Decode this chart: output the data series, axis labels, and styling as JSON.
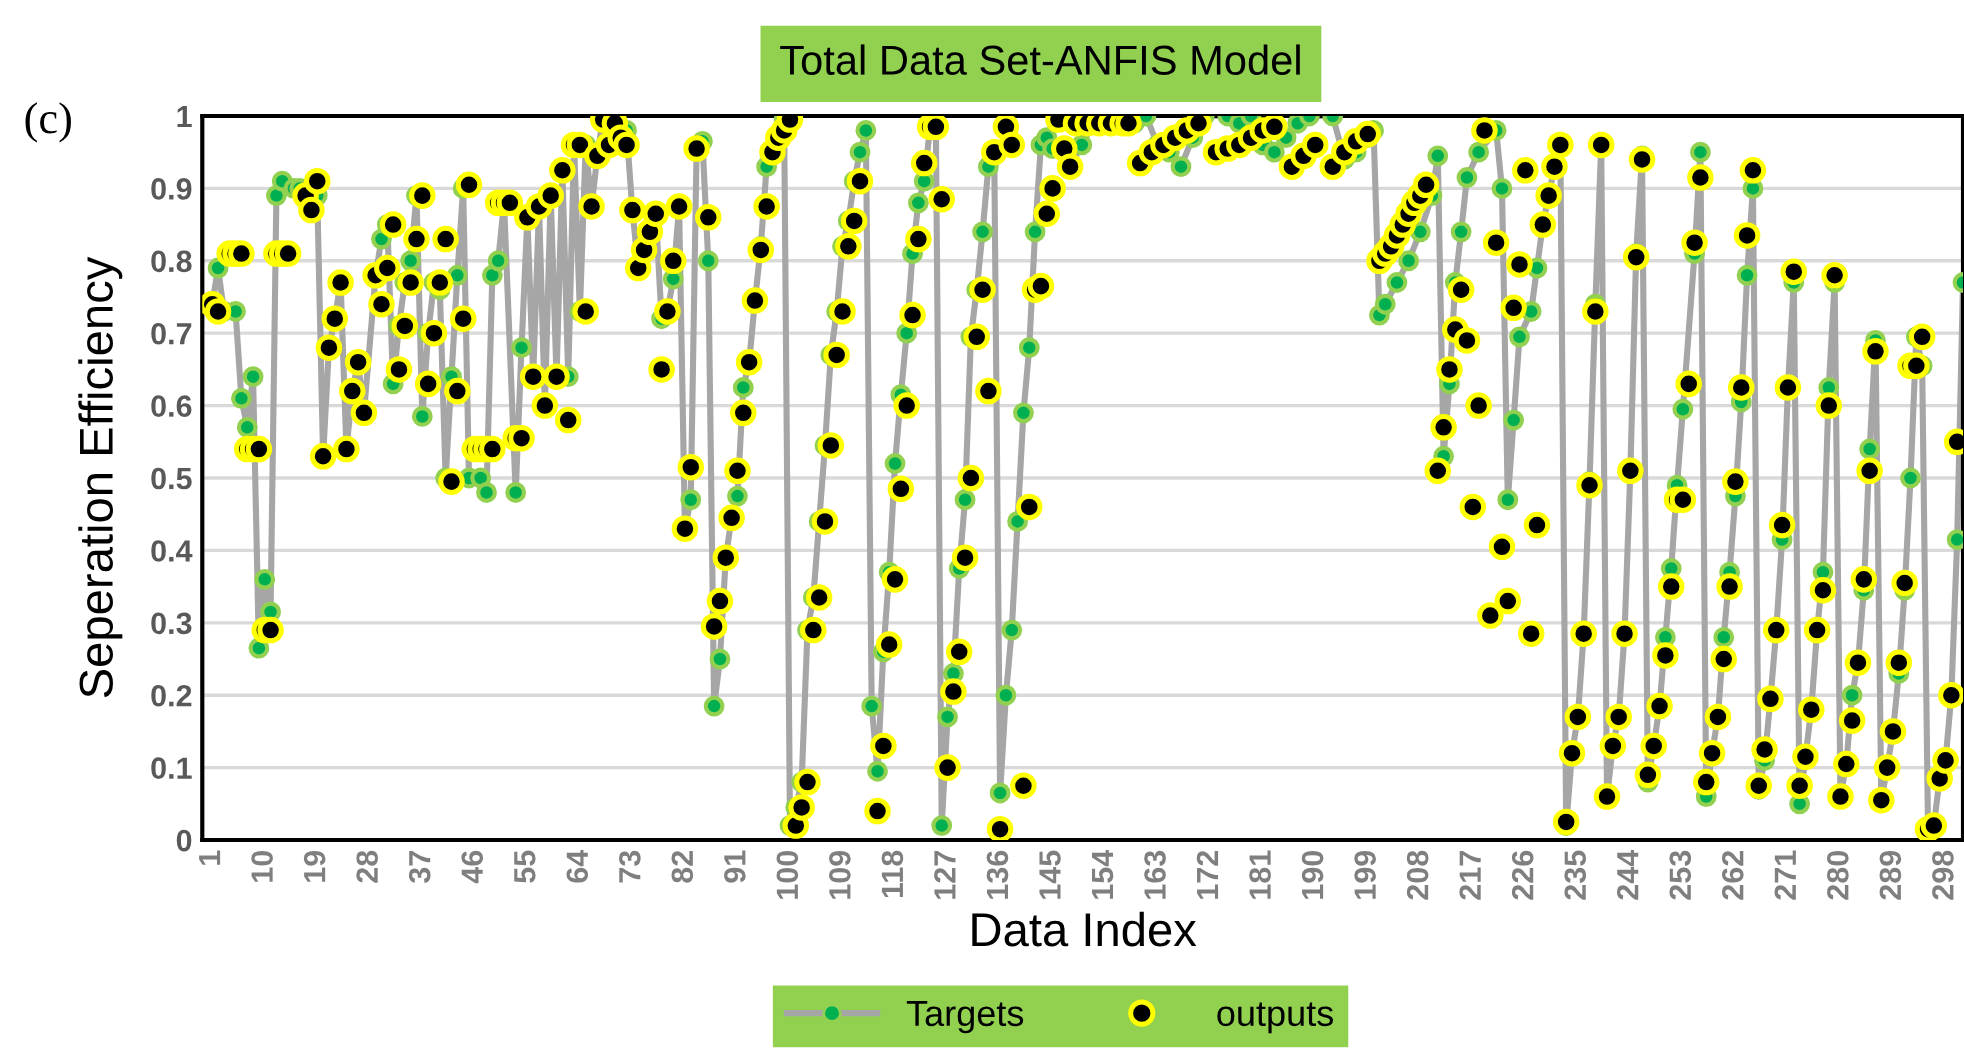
{
  "chart_data": {
    "type": "line",
    "title": "Total Data Set-ANFIS Model",
    "xlabel": "Data Index",
    "ylabel": "Seperation Efficiency",
    "annotations": [
      "(c)"
    ],
    "xlim": [
      -0.7,
      301
    ],
    "xticks": [
      1,
      10,
      19,
      28,
      37,
      46,
      55,
      64,
      73,
      82,
      91,
      100,
      109,
      118,
      127,
      136,
      145,
      154,
      163,
      172,
      181,
      190,
      199,
      208,
      217,
      226,
      235,
      244,
      253,
      262,
      271,
      280,
      289,
      298
    ],
    "ylim": [
      0,
      1
    ],
    "yticks": [
      0,
      0.1,
      0.2,
      0.3,
      0.4,
      0.5,
      0.6,
      0.7,
      0.8,
      0.9,
      1
    ],
    "grid": "y",
    "legend": "bottom",
    "series": [
      {
        "name": "Targets",
        "marker": "circle",
        "color": "#00b050",
        "x": [
          1,
          2,
          3,
          5,
          6,
          7,
          8,
          9,
          10,
          11,
          12,
          13,
          15,
          16,
          18,
          19,
          20,
          21,
          22,
          23,
          24,
          25,
          26,
          27,
          29,
          30,
          31,
          32,
          33,
          34,
          35,
          36,
          37,
          38,
          39,
          40,
          41,
          42,
          43,
          44,
          45,
          47,
          48,
          49,
          50,
          51,
          53,
          54,
          55,
          56,
          57,
          58,
          59,
          60,
          61,
          62,
          63,
          64,
          65,
          66,
          67,
          68,
          70,
          72,
          73,
          74,
          75,
          76,
          77,
          78,
          79,
          80,
          81,
          82,
          83,
          84,
          85,
          86,
          87,
          88,
          89,
          90,
          91,
          92,
          93,
          94,
          95,
          96,
          97,
          98,
          99,
          100,
          101,
          102,
          103,
          104,
          105,
          106,
          107,
          108,
          109,
          110,
          111,
          112,
          113,
          114,
          115,
          116,
          117,
          118,
          119,
          120,
          121,
          122,
          123,
          124,
          125,
          126,
          127,
          128,
          129,
          130,
          131,
          132,
          133,
          134,
          135,
          136,
          137,
          138,
          139,
          140,
          141,
          142,
          143,
          144,
          145,
          148,
          150,
          152,
          155,
          157,
          159,
          161,
          163,
          165,
          167,
          169,
          171,
          175,
          177,
          179,
          181,
          183,
          185,
          187,
          189,
          193,
          195,
          197,
          199,
          200,
          201,
          202,
          204,
          206,
          208,
          210,
          211,
          212,
          213,
          214,
          215,
          216,
          218,
          221,
          222,
          223,
          224,
          225,
          227,
          228,
          229,
          230,
          231,
          232,
          233,
          234,
          235,
          236,
          237,
          238,
          239,
          240,
          241,
          242,
          243,
          244,
          245,
          246,
          247,
          248,
          249,
          250,
          251,
          252,
          253,
          255,
          256,
          257,
          258,
          259,
          260,
          261,
          262,
          263,
          264,
          265,
          266,
          267,
          268,
          269,
          270,
          271,
          272,
          273,
          274,
          275,
          276,
          277,
          278,
          279,
          280,
          281,
          282,
          283,
          284,
          285,
          286,
          287,
          288,
          289,
          290,
          291,
          292,
          293,
          294,
          295,
          296,
          297,
          298,
          299,
          300,
          301
        ],
        "values": [
          0.74,
          0.79,
          0.73,
          0.73,
          0.61,
          0.57,
          0.64,
          0.265,
          0.36,
          0.315,
          0.89,
          0.91,
          0.9,
          0.9,
          0.88,
          0.89,
          0.53,
          0.68,
          0.72,
          0.77,
          0.54,
          0.62,
          0.66,
          0.59,
          0.78,
          0.83,
          0.85,
          0.63,
          0.71,
          0.77,
          0.8,
          0.89,
          0.585,
          0.7,
          0.77,
          0.76,
          0.5,
          0.64,
          0.78,
          0.9,
          0.5,
          0.5,
          0.48,
          0.78,
          0.8,
          0.88,
          0.48,
          0.68,
          0.86,
          0.64,
          0.875,
          0.6,
          0.89,
          0.64,
          0.925,
          0.64,
          0.96,
          0.73,
          0.96,
          0.875,
          0.945,
          1.0,
          0.96,
          0.98,
          0.87,
          0.79,
          0.815,
          0.84,
          0.865,
          0.72,
          0.73,
          0.775,
          0.875,
          0.43,
          0.47,
          0.955,
          0.965,
          0.8,
          0.185,
          0.25,
          0.39,
          0.445,
          0.475,
          0.625,
          0.66,
          0.745,
          0.82,
          0.93,
          0.95,
          0.97,
          0.995,
          0.02,
          0.045,
          0.08,
          0.29,
          0.335,
          0.44,
          0.545,
          0.67,
          0.73,
          0.82,
          0.855,
          0.91,
          0.95,
          0.98,
          0.185,
          0.095,
          0.26,
          0.37,
          0.52,
          0.615,
          0.7,
          0.81,
          0.88,
          0.91,
          0.985,
          0.985,
          0.02,
          0.17,
          0.23,
          0.375,
          0.47,
          0.695,
          0.76,
          0.84,
          0.93,
          0.95,
          0.065,
          0.2,
          0.29,
          0.44,
          0.59,
          0.68,
          0.84,
          0.96,
          0.97,
          0.955,
          0.93,
          0.96,
          0.99,
          0.99,
          1.0,
          0.99,
          1.0,
          0.96,
          0.95,
          0.93,
          0.97,
          1.0,
          1.0,
          0.99,
          1.0,
          0.96,
          0.95,
          0.97,
          0.99,
          1.0,
          1.0,
          0.94,
          0.95,
          0.97,
          0.98,
          0.725,
          0.74,
          0.77,
          0.8,
          0.84,
          0.89,
          0.945,
          0.53,
          0.63,
          0.77,
          0.84,
          0.915,
          0.95,
          0.98,
          0.9,
          0.47,
          0.58,
          0.695,
          0.73,
          0.79,
          0.85,
          0.89,
          0.93,
          0.96,
          0.02,
          0.12,
          0.17,
          0.285,
          0.495,
          0.74,
          0.96,
          0.06,
          0.13,
          0.17,
          0.285,
          0.51,
          0.81,
          0.945,
          0.08,
          0.13,
          0.185,
          0.28,
          0.375,
          0.49,
          0.595,
          0.81,
          0.95,
          0.06,
          0.12,
          0.17,
          0.28,
          0.37,
          0.475,
          0.605,
          0.78,
          0.9,
          0.07,
          0.11,
          0.195,
          0.29,
          0.415,
          0.625,
          0.77,
          0.05,
          0.115,
          0.18,
          0.29,
          0.37,
          0.625,
          0.77,
          0.06,
          0.105,
          0.2,
          0.245,
          0.345,
          0.54,
          0.69,
          0.055,
          0.1,
          0.15,
          0.23,
          0.345,
          0.5,
          0.695,
          0.655,
          0.015,
          0.02,
          0.085,
          0.11,
          0.2,
          0.415,
          0.77
        ]
      },
      {
        "name": "outputs",
        "type": "scatter",
        "marker": "circle",
        "color": "#000000",
        "x": [
          1,
          2,
          4,
          5,
          6,
          7,
          8,
          9,
          10,
          11,
          12,
          13,
          14,
          17,
          18,
          19,
          20,
          21,
          22,
          23,
          24,
          25,
          26,
          27,
          29,
          30,
          31,
          32,
          33,
          34,
          35,
          36,
          37,
          38,
          39,
          40,
          41,
          42,
          43,
          44,
          45,
          46,
          47,
          48,
          49,
          50,
          51,
          52,
          53,
          54,
          55,
          56,
          57,
          58,
          59,
          60,
          61,
          62,
          63,
          64,
          65,
          66,
          67,
          68,
          69,
          70,
          71,
          72,
          73,
          74,
          75,
          76,
          77,
          78,
          79,
          80,
          81,
          82,
          83,
          84,
          86,
          87,
          88,
          89,
          90,
          91,
          92,
          93,
          94,
          95,
          96,
          97,
          98,
          99,
          100,
          101,
          102,
          103,
          104,
          105,
          106,
          107,
          108,
          109,
          110,
          111,
          112,
          115,
          116,
          117,
          118,
          119,
          120,
          121,
          122,
          123,
          124,
          125,
          126,
          127,
          128,
          129,
          130,
          131,
          132,
          133,
          134,
          135,
          136,
          137,
          138,
          140,
          141,
          142,
          143,
          144,
          145,
          146,
          147,
          148,
          149,
          151,
          153,
          155,
          157,
          158,
          160,
          162,
          164,
          166,
          168,
          170,
          173,
          175,
          177,
          179,
          181,
          183,
          186,
          188,
          190,
          193,
          195,
          197,
          199,
          201,
          202,
          203,
          204,
          205,
          206,
          207,
          208,
          209,
          211,
          212,
          213,
          214,
          215,
          216,
          217,
          218,
          219,
          220,
          221,
          222,
          223,
          224,
          225,
          226,
          227,
          228,
          229,
          230,
          231,
          232,
          233,
          234,
          235,
          236,
          237,
          238,
          239,
          240,
          241,
          242,
          243,
          244,
          245,
          246,
          247,
          248,
          249,
          250,
          251,
          252,
          253,
          254,
          255,
          256,
          257,
          258,
          259,
          260,
          261,
          262,
          263,
          264,
          265,
          266,
          267,
          268,
          269,
          270,
          271,
          272,
          273,
          274,
          275,
          276,
          277,
          278,
          279,
          280,
          281,
          282,
          283,
          284,
          285,
          286,
          287,
          288,
          289,
          290,
          291,
          292,
          293,
          294,
          295,
          296,
          297,
          298,
          299,
          300
        ],
        "values": [
          0.74,
          0.73,
          0.81,
          0.81,
          0.81,
          0.54,
          0.54,
          0.54,
          0.29,
          0.29,
          0.81,
          0.81,
          0.81,
          0.89,
          0.87,
          0.91,
          0.53,
          0.68,
          0.72,
          0.77,
          0.54,
          0.62,
          0.66,
          0.59,
          0.78,
          0.74,
          0.79,
          0.85,
          0.65,
          0.71,
          0.77,
          0.83,
          0.89,
          0.63,
          0.7,
          0.77,
          0.83,
          0.495,
          0.62,
          0.72,
          0.905,
          0.54,
          0.54,
          0.54,
          0.54,
          0.88,
          0.88,
          0.88,
          0.555,
          0.555,
          0.86,
          0.64,
          0.875,
          0.6,
          0.89,
          0.64,
          0.925,
          0.58,
          0.96,
          0.96,
          0.73,
          0.875,
          0.945,
          0.995,
          0.96,
          0.99,
          0.97,
          0.96,
          0.87,
          0.79,
          0.815,
          0.84,
          0.865,
          0.65,
          0.73,
          0.8,
          0.875,
          0.43,
          0.515,
          0.955,
          0.86,
          0.295,
          0.33,
          0.39,
          0.445,
          0.51,
          0.59,
          0.66,
          0.745,
          0.815,
          0.875,
          0.95,
          0.97,
          0.98,
          0.995,
          0.02,
          0.045,
          0.08,
          0.29,
          0.335,
          0.44,
          0.545,
          0.67,
          0.73,
          0.82,
          0.855,
          0.91,
          0.04,
          0.13,
          0.27,
          0.36,
          0.485,
          0.6,
          0.725,
          0.83,
          0.935,
          0.985,
          0.985,
          0.885,
          0.1,
          0.205,
          0.26,
          0.39,
          0.5,
          0.695,
          0.76,
          0.62,
          0.95,
          0.015,
          0.985,
          0.96,
          0.075,
          0.46,
          0.76,
          0.765,
          0.865,
          0.9,
          0.995,
          0.955,
          0.93,
          0.99,
          0.99,
          0.99,
          0.99,
          0.99,
          0.99,
          0.935,
          0.95,
          0.96,
          0.97,
          0.98,
          0.99,
          0.95,
          0.955,
          0.96,
          0.97,
          0.98,
          0.985,
          0.93,
          0.945,
          0.96,
          0.93,
          0.95,
          0.965,
          0.975,
          0.8,
          0.81,
          0.82,
          0.835,
          0.85,
          0.865,
          0.88,
          0.89,
          0.905,
          0.51,
          0.57,
          0.65,
          0.705,
          0.76,
          0.69,
          0.46,
          0.6,
          0.98,
          0.31,
          0.825,
          0.405,
          0.33,
          0.735,
          0.795,
          0.925,
          0.285,
          0.435,
          0.85,
          0.89,
          0.93,
          0.96,
          0.025,
          0.12,
          0.17,
          0.285,
          0.49,
          0.73,
          0.96,
          0.06,
          0.13,
          0.17,
          0.285,
          0.51,
          0.805,
          0.94,
          0.09,
          0.13,
          0.185,
          0.255,
          0.35,
          0.47,
          0.47,
          0.63,
          0.825,
          0.915,
          0.08,
          0.12,
          0.17,
          0.25,
          0.35,
          0.495,
          0.625,
          0.835,
          0.925,
          0.075,
          0.125,
          0.195,
          0.29,
          0.435,
          0.625,
          0.785,
          0.075,
          0.115,
          0.18,
          0.29,
          0.345,
          0.6,
          0.78,
          0.06,
          0.105,
          0.165,
          0.245,
          0.36,
          0.51,
          0.675,
          0.055,
          0.1,
          0.15,
          0.245,
          0.355,
          0.655,
          0.655,
          0.695,
          0.015,
          0.02,
          0.085,
          0.11,
          0.2,
          0.55
        ]
      }
    ]
  }
}
